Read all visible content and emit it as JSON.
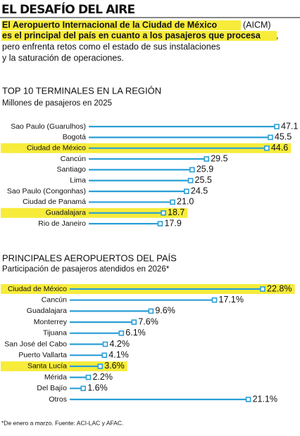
{
  "header": {
    "title": "EL DESAFÍO DEL AIRE",
    "intro": [
      "El Aeropuerto Internacional de la Ciudad de México",
      "(AICM)",
      "es el principal del país en cuanto a los pasajeros que procesa",
      ",",
      "pero enfrenta retos como el estado de sus instalaciones",
      "y la saturación de operaciones."
    ]
  },
  "chart_data": [
    {
      "type": "lollipop",
      "title": "TOP 10 TERMINALES EN LA REGIÓN",
      "subtitle": "Millones de pasajeros en 2025",
      "categories": [
        "Sao Paulo (Guarulhos)",
        "Bogotá",
        "Ciudad de México",
        "Cancún",
        "Santiago",
        "Lima",
        "Sao Paulo (Congonhas)",
        "Ciudad de Panamá",
        "Guadalajara",
        "Rio de Janeiro"
      ],
      "values": [
        47.1,
        45.5,
        44.6,
        29.5,
        25.9,
        25.5,
        24.5,
        21.0,
        18.7,
        17.9
      ],
      "value_labels": [
        "47.1",
        "45.5",
        "44.6",
        "29.5",
        "25.9",
        "25.5",
        "24.5",
        "21.0",
        "18.7",
        "17.9"
      ],
      "highlight": [
        false,
        false,
        true,
        false,
        false,
        false,
        false,
        false,
        true,
        false
      ],
      "color": "#2a9fd6",
      "highlight_color": "#f7ec3a"
    },
    {
      "type": "lollipop",
      "title": "PRINCIPALES AEROPUERTOS DEL PAÍS",
      "subtitle": "Participación de pasajeros atendidos en 2026*",
      "categories": [
        "Ciudad de México",
        "Cancún",
        "Guadalajara",
        "Monterrey",
        "Tijuana",
        "San José del Cabo",
        "Puerto Vallarta",
        "Santa Lucía",
        "Mérida",
        "Del Bajío",
        "Otros"
      ],
      "values": [
        22.8,
        17.1,
        9.6,
        7.6,
        6.1,
        4.2,
        4.1,
        3.6,
        2.2,
        1.6,
        21.1
      ],
      "value_labels": [
        "22.8%",
        "17.1%",
        "9.6%",
        "7.6%",
        "6.1%",
        "4.2%",
        "4.1%",
        "3.6%",
        "2.2%",
        "1.6%",
        "21.1%"
      ],
      "highlight": [
        true,
        false,
        false,
        false,
        false,
        false,
        false,
        true,
        false,
        false,
        false
      ],
      "color": "#2a9fd6",
      "highlight_color": "#f7ec3a"
    }
  ],
  "footnote": "*De enero a marzo. Fuente: ACI-LAC y AFAC."
}
